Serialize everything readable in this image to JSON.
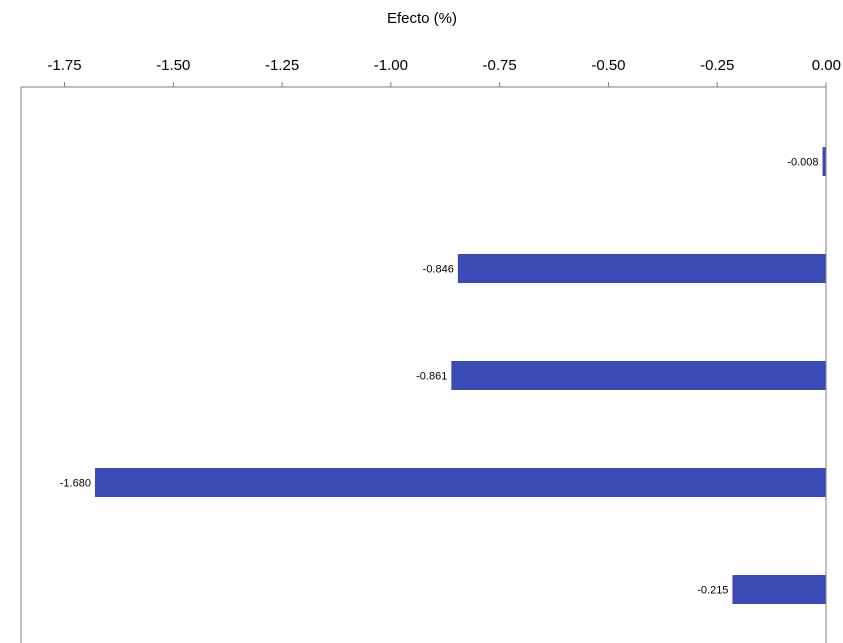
{
  "chart_data": {
    "type": "bar",
    "orientation": "horizontal",
    "title": "",
    "xlabel": "Efecto (%)",
    "ylabel": "",
    "xlim": [
      -1.85,
      0.0
    ],
    "x_axis_position": "top",
    "x_ticks": [
      -1.75,
      -1.5,
      -1.25,
      -1.0,
      -0.75,
      -0.5,
      -0.25,
      0.0
    ],
    "x_tick_labels": [
      "-1.75",
      "-1.50",
      "-1.25",
      "-1.00",
      "-0.75",
      "-0.50",
      "-0.25",
      "0.00"
    ],
    "categories": [
      "",
      "",
      "",
      "",
      ""
    ],
    "values": [
      -0.008,
      -0.846,
      -0.861,
      -1.68,
      -0.215
    ],
    "value_labels": [
      "-0.008",
      "-0.846",
      "-0.861",
      "-1.680",
      "-0.215"
    ],
    "bar_color": "#3b4bb5",
    "grid": false,
    "legend": "none"
  }
}
